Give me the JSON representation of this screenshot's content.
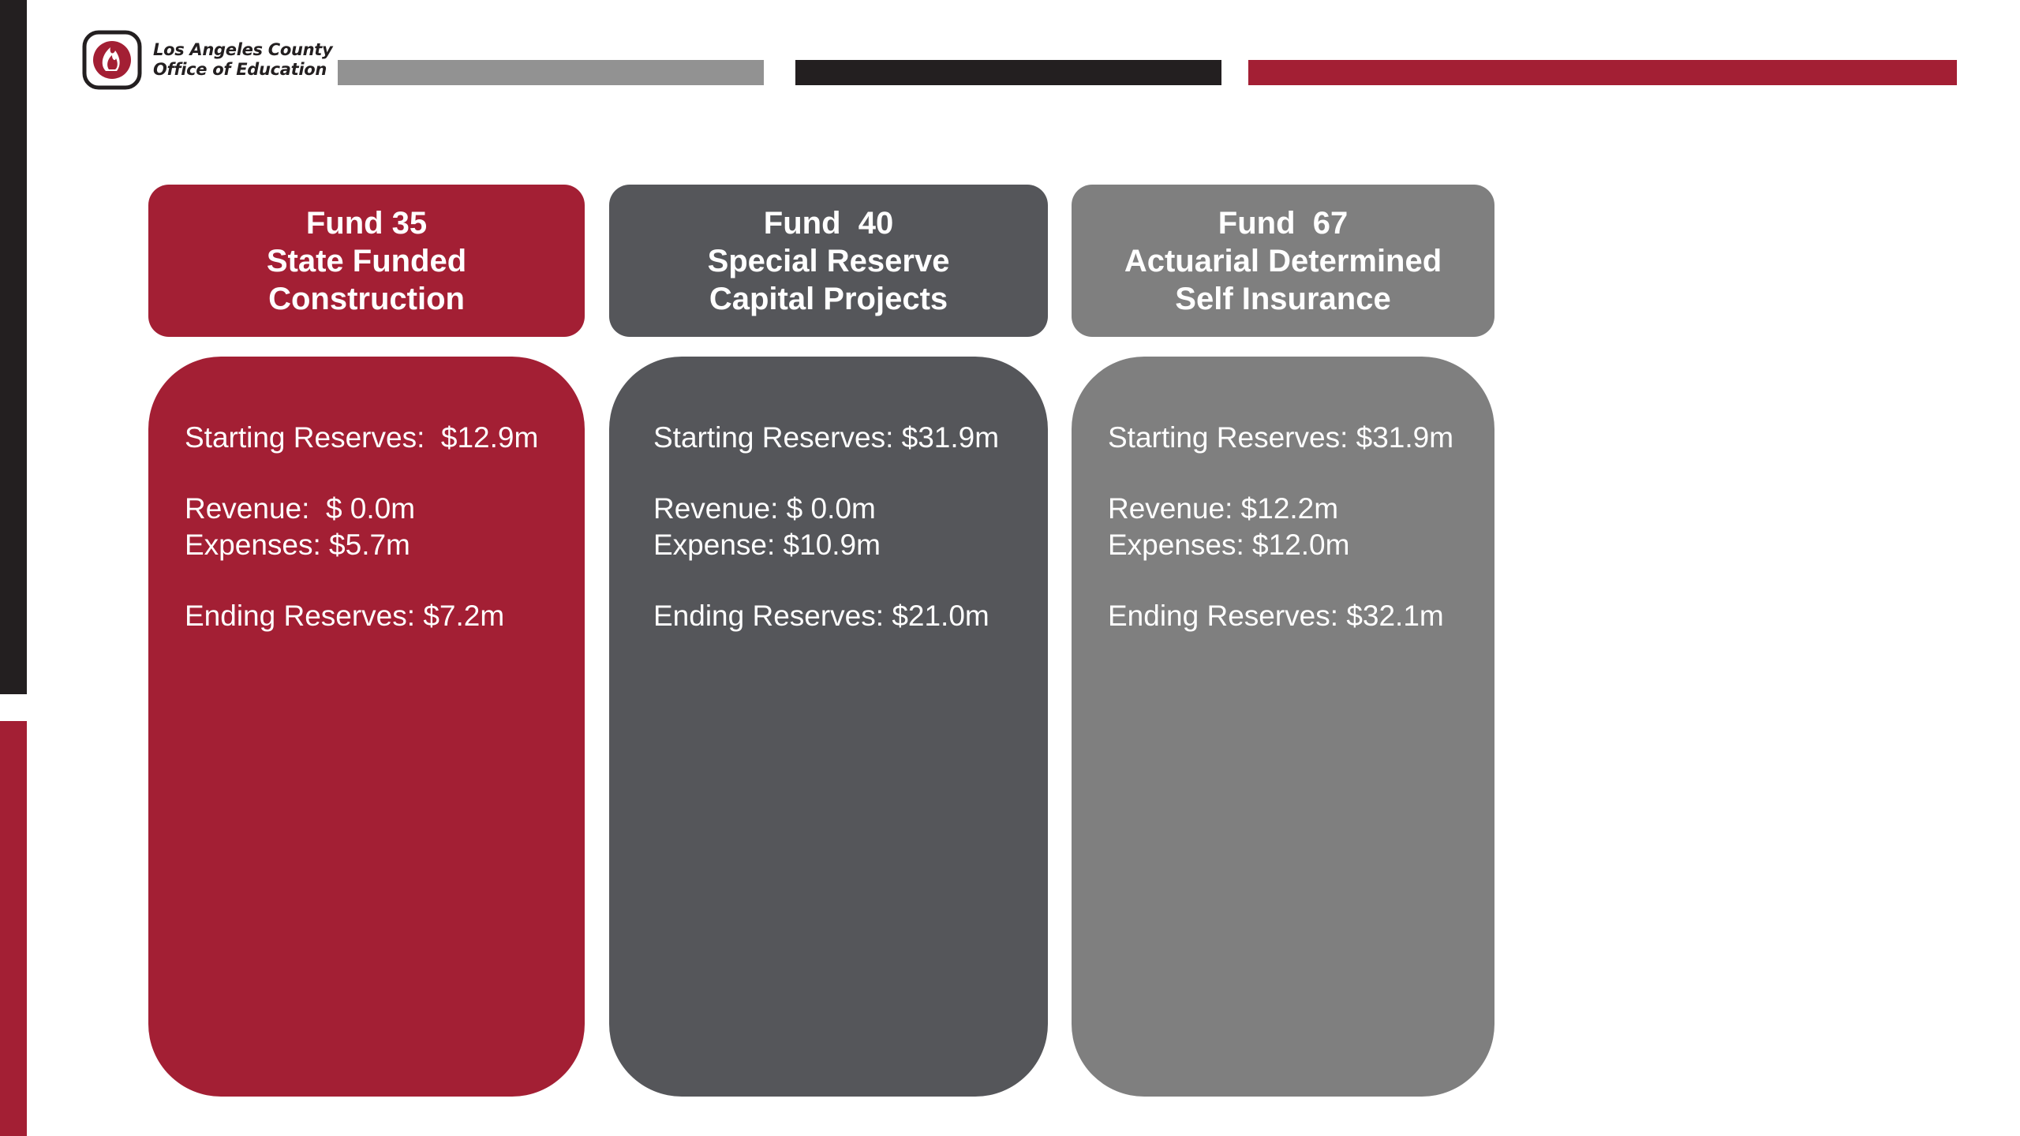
{
  "org": {
    "name_line1": "Los Angeles County",
    "name_line2": "Office of Education"
  },
  "colors": {
    "brand_red": "#a31f34",
    "dark": "#231f20",
    "charcoal": "#55565a",
    "gray": "#7f7f7f",
    "stripe_gray": "#929292"
  },
  "funds": [
    {
      "title": "Fund 35",
      "subtitle_line1": "State Funded",
      "subtitle_line2": "Construction",
      "starting": "Starting Reserves:  $12.9m",
      "revenue": "Revenue:  $ 0.0m",
      "expenses": "Expenses: $5.7m",
      "ending": "Ending Reserves: $7.2m"
    },
    {
      "title": "Fund  40",
      "subtitle_line1": "Special Reserve",
      "subtitle_line2": "Capital Projects",
      "starting": "Starting Reserves: $31.9m",
      "revenue": "Revenue: $ 0.0m",
      "expenses": "Expense: $10.9m",
      "ending": "Ending Reserves: $21.0m"
    },
    {
      "title": "Fund  67",
      "subtitle_line1": "Actuarial Determined",
      "subtitle_line2": "Self Insurance",
      "starting": "Starting Reserves: $31.9m",
      "revenue": "Revenue: $12.2m",
      "expenses": "Expenses: $12.0m",
      "ending": "Ending Reserves: $32.1m"
    }
  ]
}
